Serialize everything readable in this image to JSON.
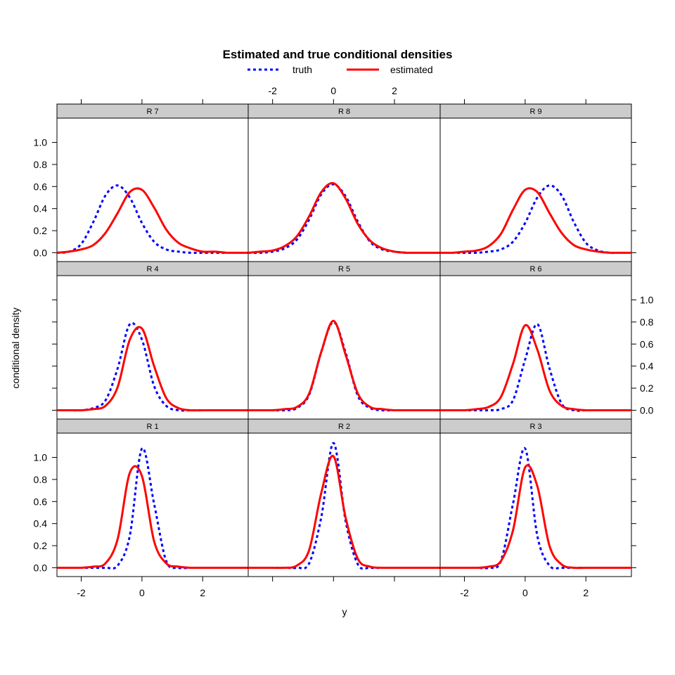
{
  "chart_data": {
    "type": "line",
    "title": "Estimated and true conditional densities",
    "xlabel": "y",
    "ylabel": "conditional density",
    "xlim": [
      -2.8,
      3.5
    ],
    "ylim": [
      -0.08,
      1.22
    ],
    "x_ticks": [
      -2,
      0,
      2
    ],
    "x_tick_labels": [
      "-2",
      "0",
      "2"
    ],
    "y_ticks": [
      0,
      0.2,
      0.4,
      0.6,
      0.8,
      1.0
    ],
    "y_tick_labels": [
      "0.0",
      "0.2",
      "0.4",
      "0.6",
      "0.8",
      "1.0"
    ],
    "legend": [
      {
        "name": "truth",
        "color": "#0000ff",
        "style": "dotted"
      },
      {
        "name": "estimated",
        "color": "#ff0000",
        "style": "solid"
      }
    ],
    "x_grid": [
      -2.8,
      -2.4,
      -2.0,
      -1.6,
      -1.2,
      -0.8,
      -0.4,
      0.0,
      0.4,
      0.8,
      1.2,
      1.6,
      2.0,
      2.4,
      2.8,
      3.2,
      3.5
    ],
    "panels": [
      {
        "label": "R 7",
        "truth": [
          0.0,
          0.01,
          0.08,
          0.28,
          0.52,
          0.61,
          0.5,
          0.27,
          0.1,
          0.03,
          0.01,
          0.0,
          0.0,
          0.0,
          0.0,
          0.0,
          0.0
        ],
        "estimated": [
          0.0,
          0.01,
          0.03,
          0.07,
          0.18,
          0.36,
          0.55,
          0.57,
          0.41,
          0.21,
          0.09,
          0.04,
          0.01,
          0.01,
          0.0,
          0.0,
          0.0
        ]
      },
      {
        "label": "R 8",
        "truth": [
          0.0,
          0.0,
          0.01,
          0.04,
          0.12,
          0.3,
          0.53,
          0.62,
          0.51,
          0.28,
          0.1,
          0.03,
          0.01,
          0.0,
          0.0,
          0.0,
          0.0
        ],
        "estimated": [
          0.0,
          0.01,
          0.02,
          0.06,
          0.15,
          0.33,
          0.55,
          0.63,
          0.49,
          0.26,
          0.11,
          0.04,
          0.01,
          0.0,
          0.0,
          0.0,
          0.0
        ]
      },
      {
        "label": "R 9",
        "truth": [
          0.0,
          0.0,
          0.0,
          0.0,
          0.01,
          0.03,
          0.1,
          0.27,
          0.5,
          0.61,
          0.52,
          0.28,
          0.09,
          0.02,
          0.0,
          0.0,
          0.0
        ],
        "estimated": [
          0.0,
          0.0,
          0.01,
          0.02,
          0.06,
          0.17,
          0.39,
          0.57,
          0.55,
          0.36,
          0.18,
          0.07,
          0.03,
          0.01,
          0.0,
          0.0,
          0.0
        ]
      },
      {
        "label": "R 4",
        "truth": [
          0.0,
          0.0,
          0.0,
          0.02,
          0.09,
          0.38,
          0.78,
          0.64,
          0.22,
          0.04,
          0.0,
          0.0,
          0.0,
          0.0,
          0.0,
          0.0,
          0.0
        ],
        "estimated": [
          0.0,
          0.0,
          0.0,
          0.01,
          0.04,
          0.21,
          0.64,
          0.74,
          0.4,
          0.11,
          0.02,
          0.0,
          0.0,
          0.0,
          0.0,
          0.0,
          0.0
        ]
      },
      {
        "label": "R 5",
        "truth": [
          0.0,
          0.0,
          0.0,
          0.0,
          0.02,
          0.14,
          0.53,
          0.8,
          0.52,
          0.13,
          0.02,
          0.0,
          0.0,
          0.0,
          0.0,
          0.0,
          0.0
        ],
        "estimated": [
          0.0,
          0.0,
          0.0,
          0.01,
          0.03,
          0.15,
          0.53,
          0.81,
          0.5,
          0.15,
          0.03,
          0.01,
          0.0,
          0.0,
          0.0,
          0.0,
          0.0
        ]
      },
      {
        "label": "R 6",
        "truth": [
          0.0,
          0.0,
          0.0,
          0.0,
          0.0,
          0.01,
          0.09,
          0.46,
          0.78,
          0.38,
          0.06,
          0.0,
          0.0,
          0.0,
          0.0,
          0.0,
          0.0
        ],
        "estimated": [
          0.0,
          0.0,
          0.0,
          0.01,
          0.03,
          0.12,
          0.42,
          0.77,
          0.55,
          0.18,
          0.04,
          0.01,
          0.0,
          0.0,
          0.0,
          0.0,
          0.0
        ]
      },
      {
        "label": "R 1",
        "truth": [
          0.0,
          0.0,
          0.0,
          0.0,
          0.0,
          0.02,
          0.29,
          1.08,
          0.58,
          0.06,
          0.0,
          0.0,
          0.0,
          0.0,
          0.0,
          0.0,
          0.0
        ],
        "estimated": [
          0.0,
          0.0,
          0.0,
          0.01,
          0.04,
          0.26,
          0.86,
          0.83,
          0.24,
          0.04,
          0.01,
          0.0,
          0.0,
          0.0,
          0.0,
          0.0,
          0.0
        ]
      },
      {
        "label": "R 2",
        "truth": [
          0.0,
          0.0,
          0.0,
          0.0,
          0.0,
          0.04,
          0.46,
          1.13,
          0.42,
          0.03,
          0.0,
          0.0,
          0.0,
          0.0,
          0.0,
          0.0,
          0.0
        ],
        "estimated": [
          0.0,
          0.0,
          0.0,
          0.0,
          0.02,
          0.16,
          0.68,
          1.01,
          0.45,
          0.08,
          0.01,
          0.0,
          0.0,
          0.0,
          0.0,
          0.0,
          0.0
        ]
      },
      {
        "label": "R 3",
        "truth": [
          0.0,
          0.0,
          0.0,
          0.0,
          0.0,
          0.06,
          0.58,
          1.08,
          0.29,
          0.02,
          0.0,
          0.0,
          0.0,
          0.0,
          0.0,
          0.0,
          0.0
        ],
        "estimated": [
          0.0,
          0.0,
          0.0,
          0.0,
          0.01,
          0.06,
          0.34,
          0.91,
          0.74,
          0.2,
          0.03,
          0.0,
          0.0,
          0.0,
          0.0,
          0.0,
          0.0
        ]
      }
    ]
  }
}
